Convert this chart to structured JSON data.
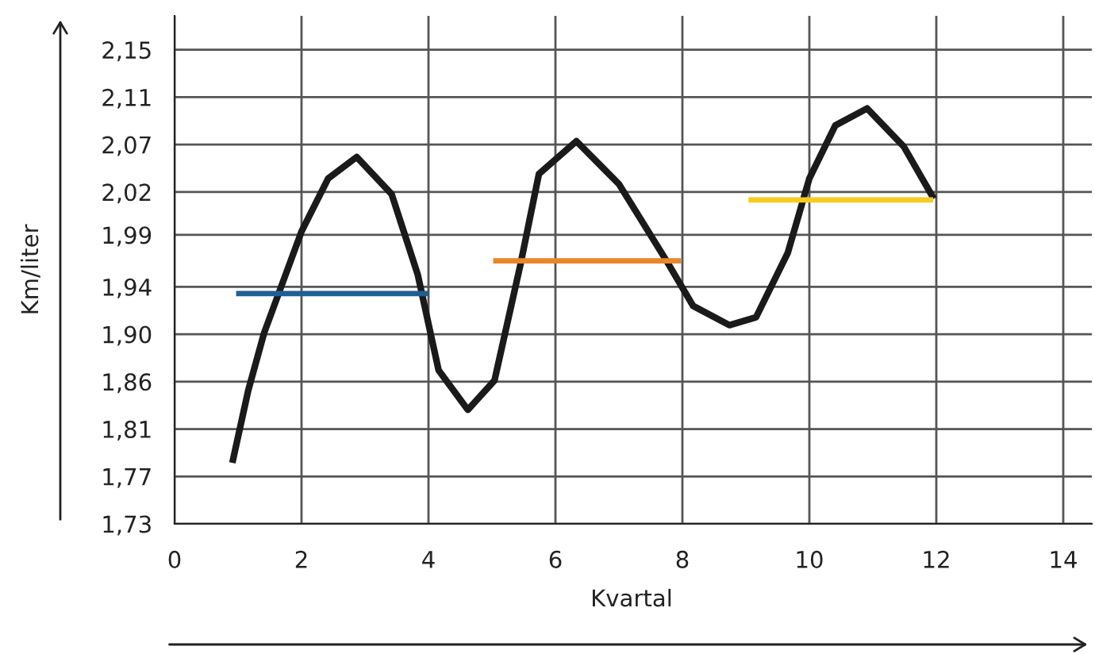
{
  "chart_data": {
    "type": "line",
    "xlabel": "Kvartal",
    "ylabel": "Km/liter",
    "xlim": [
      0,
      14.45
    ],
    "xticks": [
      0,
      2,
      4,
      6,
      8,
      10,
      12,
      14
    ],
    "ylim": [
      1.73,
      2.18
    ],
    "yticks": [
      {
        "value": 1.73,
        "label": "1,73"
      },
      {
        "value": 1.772,
        "label": "1,77"
      },
      {
        "value": 1.814,
        "label": "1,81"
      },
      {
        "value": 1.856,
        "label": "1,86"
      },
      {
        "value": 1.898,
        "label": "1,90"
      },
      {
        "value": 1.94,
        "label": "1,94"
      },
      {
        "value": 1.986,
        "label": "1,99"
      },
      {
        "value": 2.024,
        "label": "2,02"
      },
      {
        "value": 2.066,
        "label": "2,07"
      },
      {
        "value": 2.108,
        "label": "2,11"
      },
      {
        "value": 2.15,
        "label": "2,15"
      }
    ],
    "grid": true,
    "marker": "none",
    "line_style": "solid",
    "series": [
      {
        "color": "#1a1a1a",
        "x": [
          0.91,
          1.16,
          1.41,
          2.0,
          2.42,
          2.87,
          3.42,
          3.83,
          4.16,
          4.62,
          5.04,
          5.45,
          5.74,
          6.33,
          7.0,
          7.75,
          8.17,
          8.74,
          9.16,
          9.66,
          10.0,
          10.41,
          10.91,
          11.49,
          11.96
        ],
        "values": [
          1.784,
          1.848,
          1.899,
          1.989,
          2.036,
          2.055,
          2.022,
          1.951,
          1.866,
          1.831,
          1.857,
          1.96,
          2.04,
          2.069,
          2.031,
          1.963,
          1.923,
          1.906,
          1.913,
          1.97,
          2.036,
          2.083,
          2.098,
          2.064,
          2.018
        ]
      },
      {
        "color": "#1f5f94",
        "x": [
          0.97,
          4.01
        ],
        "values": [
          1.934,
          1.934
        ]
      },
      {
        "color": "#e8862a",
        "x": [
          5.02,
          7.98
        ],
        "values": [
          1.963,
          1.963
        ]
      },
      {
        "color": "#f5cc1f",
        "x": [
          9.04,
          11.95
        ],
        "values": [
          2.017,
          2.017
        ]
      }
    ]
  }
}
